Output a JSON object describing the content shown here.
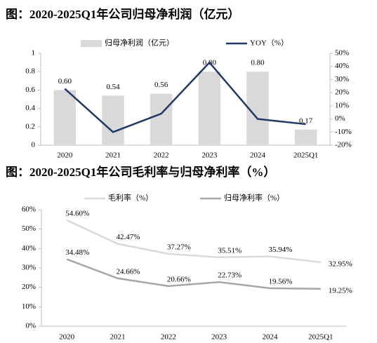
{
  "chart_data": [
    {
      "type": "bar",
      "title": "图：2020-2025Q1年公司归母净利润（亿元）",
      "categories": [
        "2020",
        "2021",
        "2022",
        "2023",
        "2024",
        "2025Q1"
      ],
      "series": [
        {
          "name": "归母净利润（亿元）",
          "type": "bar",
          "color": "#d9d9d9",
          "values": [
            0.6,
            0.54,
            0.56,
            0.8,
            0.8,
            0.17
          ],
          "value_labels": [
            "0.60",
            "0.54",
            "0.56",
            "0.80",
            "0.80",
            "0.17"
          ]
        },
        {
          "name": "YOY（%）",
          "type": "line",
          "axis": "y2",
          "color": "#1f3864",
          "values": [
            23,
            -10,
            4,
            43,
            0,
            -4
          ]
        }
      ],
      "ylim": [
        0,
        1
      ],
      "yticks": [
        0,
        0.2,
        0.4,
        0.6,
        0.8,
        1
      ],
      "y2lim": [
        -20,
        50
      ],
      "y2ticks": [
        {
          "value": -20,
          "label": "-20%"
        },
        {
          "value": -10,
          "label": "-10%"
        },
        {
          "value": 0,
          "label": "0%"
        },
        {
          "value": 10,
          "label": "10%"
        },
        {
          "value": 20,
          "label": "20%"
        },
        {
          "value": 30,
          "label": "30%"
        },
        {
          "value": 40,
          "label": "40%"
        },
        {
          "value": 50,
          "label": "50%"
        }
      ]
    },
    {
      "type": "line",
      "title": "图：2020-2025Q1年公司毛利率与归母净利率（%）",
      "categories": [
        "2020",
        "2021",
        "2022",
        "2023",
        "2024",
        "2025Q1"
      ],
      "series": [
        {
          "name": "毛利率（%）",
          "color": "#d9d9d9",
          "values": [
            54.6,
            42.47,
            37.27,
            35.51,
            35.94,
            32.95
          ],
          "value_labels": [
            "54.60%",
            "42.47%",
            "37.27%",
            "35.51%",
            "35.94%",
            "32.95%"
          ]
        },
        {
          "name": "归母净利率（%）",
          "color": "#a6a6a6",
          "values": [
            34.48,
            24.66,
            20.66,
            22.73,
            19.56,
            19.25
          ],
          "value_labels": [
            "34.48%",
            "24.66%",
            "20.66%",
            "22.73%",
            "19.56%",
            "19.25%"
          ]
        }
      ],
      "ylim": [
        0,
        60
      ],
      "yticks": [
        {
          "value": 0,
          "label": "0%"
        },
        {
          "value": 10,
          "label": "10%"
        },
        {
          "value": 20,
          "label": "20%"
        },
        {
          "value": 30,
          "label": "30%"
        },
        {
          "value": 40,
          "label": "40%"
        },
        {
          "value": 50,
          "label": "50%"
        },
        {
          "value": 60,
          "label": "60%"
        }
      ]
    }
  ]
}
